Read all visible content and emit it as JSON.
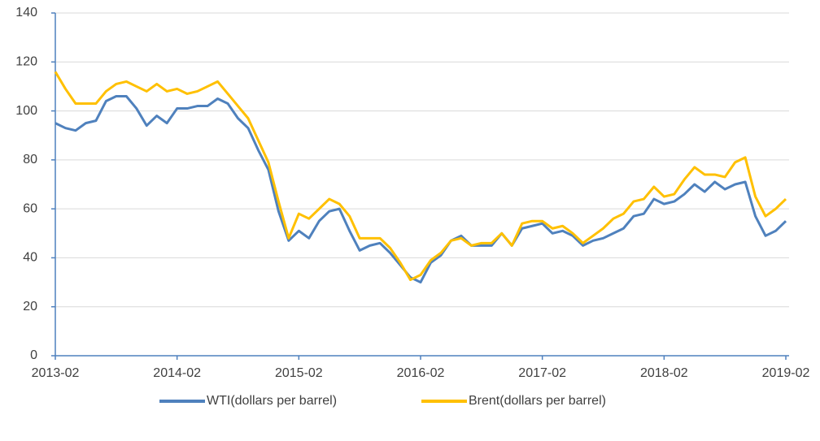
{
  "chart_data": {
    "type": "line",
    "x": [
      "2013-02",
      "2013-03",
      "2013-04",
      "2013-05",
      "2013-06",
      "2013-07",
      "2013-08",
      "2013-09",
      "2013-10",
      "2013-11",
      "2013-12",
      "2014-01",
      "2014-02",
      "2014-03",
      "2014-04",
      "2014-05",
      "2014-06",
      "2014-07",
      "2014-08",
      "2014-09",
      "2014-10",
      "2014-11",
      "2014-12",
      "2015-01",
      "2015-02",
      "2015-03",
      "2015-04",
      "2015-05",
      "2015-06",
      "2015-07",
      "2015-08",
      "2015-09",
      "2015-10",
      "2015-11",
      "2015-12",
      "2016-01",
      "2016-02",
      "2016-03",
      "2016-04",
      "2016-05",
      "2016-06",
      "2016-07",
      "2016-08",
      "2016-09",
      "2016-10",
      "2016-11",
      "2016-12",
      "2017-01",
      "2017-02",
      "2017-03",
      "2017-04",
      "2017-05",
      "2017-06",
      "2017-07",
      "2017-08",
      "2017-09",
      "2017-10",
      "2017-11",
      "2017-12",
      "2018-01",
      "2018-02",
      "2018-03",
      "2018-04",
      "2018-05",
      "2018-06",
      "2018-07",
      "2018-08",
      "2018-09",
      "2018-10",
      "2018-11",
      "2018-12",
      "2019-01",
      "2019-02"
    ],
    "series": [
      {
        "name": "WTI(dollars per barrel)",
        "color": "#4f81bd",
        "values": [
          95,
          93,
          92,
          95,
          96,
          104,
          106,
          106,
          101,
          94,
          98,
          95,
          101,
          101,
          102,
          102,
          105,
          103,
          97,
          93,
          84,
          76,
          59,
          47,
          51,
          48,
          55,
          59,
          60,
          51,
          43,
          45,
          46,
          42,
          37,
          32,
          30,
          38,
          41,
          47,
          49,
          45,
          45,
          45,
          50,
          45,
          52,
          53,
          54,
          50,
          51,
          49,
          45,
          47,
          48,
          50,
          52,
          57,
          58,
          64,
          62,
          63,
          66,
          70,
          67,
          71,
          68,
          70,
          71,
          57,
          49,
          51,
          55
        ]
      },
      {
        "name": "Brent(dollars per barrel)",
        "color": "#ffc000",
        "values": [
          116,
          109,
          103,
          103,
          103,
          108,
          111,
          112,
          110,
          108,
          111,
          108,
          109,
          107,
          108,
          110,
          112,
          107,
          102,
          97,
          88,
          79,
          63,
          48,
          58,
          56,
          60,
          64,
          62,
          57,
          48,
          48,
          48,
          44,
          38,
          31,
          33,
          39,
          42,
          47,
          48,
          45,
          46,
          46,
          50,
          45,
          54,
          55,
          55,
          52,
          53,
          50,
          46,
          49,
          52,
          56,
          58,
          63,
          64,
          69,
          65,
          66,
          72,
          77,
          74,
          74,
          73,
          79,
          81,
          65,
          57,
          60,
          64
        ]
      }
    ],
    "xlim": [
      "2013-02",
      "2019-02"
    ],
    "xticks": [
      "2013-02",
      "2014-02",
      "2015-02",
      "2016-02",
      "2017-02",
      "2018-02",
      "2019-02"
    ],
    "ylim": [
      0,
      140
    ],
    "yticks": [
      0,
      20,
      40,
      60,
      80,
      100,
      120,
      140
    ],
    "grid": true,
    "legend": "bottom"
  }
}
